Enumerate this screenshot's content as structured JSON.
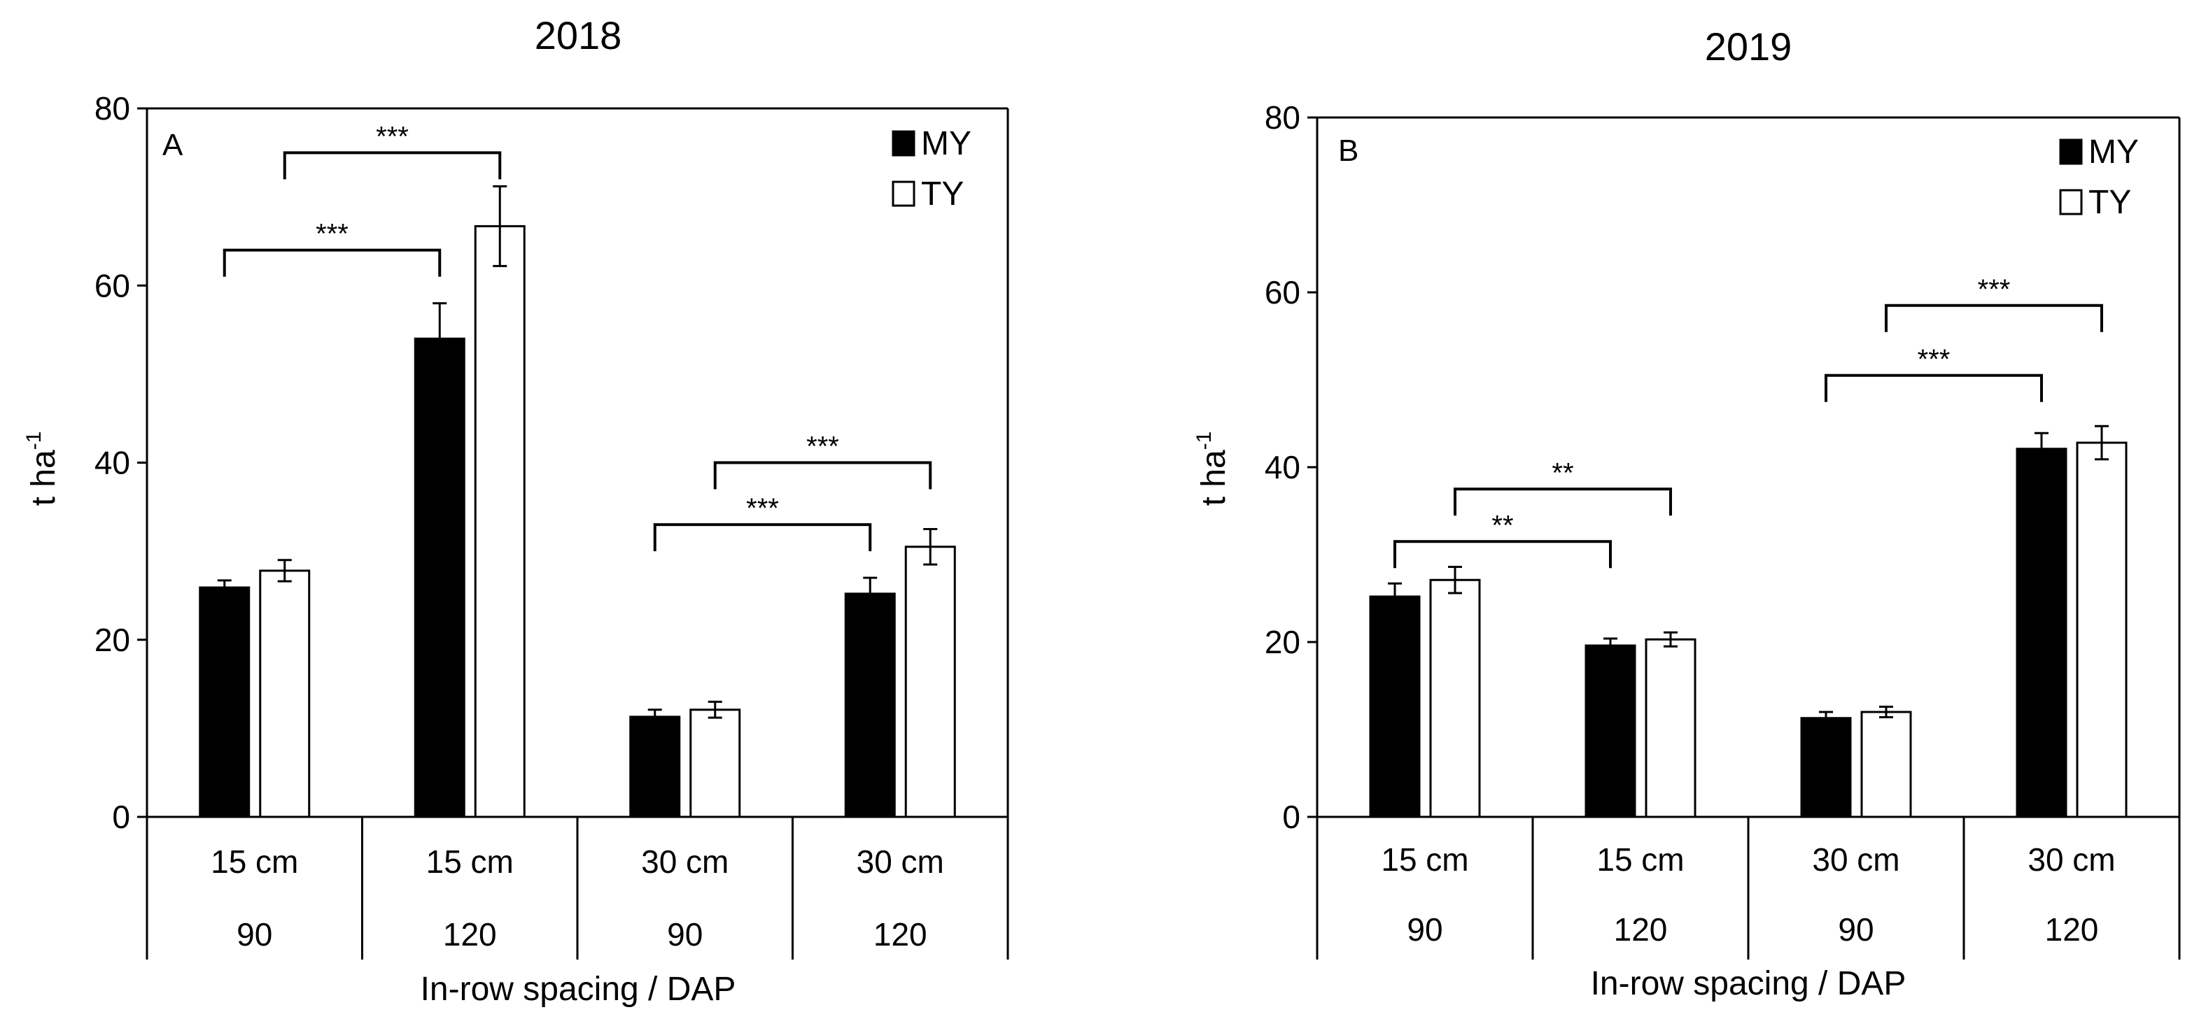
{
  "colors": {
    "my": "#000000",
    "ty": "#ffffff",
    "axis": "#000000"
  },
  "chart_data": [
    {
      "type": "bar",
      "title": "2018",
      "panel_label": "A",
      "ylabel": "t ha",
      "ylabel_sup": "-1",
      "xlabel": "In-row spacing / DAP",
      "ylim": [
        0,
        80
      ],
      "yticks": [
        "0",
        "20",
        "40",
        "60",
        "80"
      ],
      "categories_row1": [
        "15 cm",
        "15 cm",
        "30 cm",
        "30 cm"
      ],
      "categories_row2": [
        "90",
        "120",
        "90",
        "120"
      ],
      "legend": [
        "MY",
        "TY"
      ],
      "legend_position": "top-right",
      "series": [
        {
          "name": "MY",
          "values": [
            25.9,
            54.0,
            11.3,
            25.2
          ],
          "errors": [
            0.8,
            4.0,
            0.8,
            1.8
          ]
        },
        {
          "name": "TY",
          "values": [
            27.8,
            66.7,
            12.1,
            30.5
          ],
          "errors": [
            1.2,
            4.5,
            0.9,
            2.0
          ]
        }
      ],
      "significance": [
        {
          "from": [
            0,
            0
          ],
          "to": [
            1,
            0
          ],
          "label": "***",
          "y": 64
        },
        {
          "from": [
            0,
            1
          ],
          "to": [
            1,
            1
          ],
          "label": "***",
          "y": 75
        },
        {
          "from": [
            2,
            0
          ],
          "to": [
            3,
            0
          ],
          "label": "***",
          "y": 33
        },
        {
          "from": [
            2,
            1
          ],
          "to": [
            3,
            1
          ],
          "label": "***",
          "y": 40
        }
      ]
    },
    {
      "type": "bar",
      "title": "2019",
      "panel_label": "B",
      "ylabel": "t ha",
      "ylabel_sup": "-1",
      "xlabel": "In-row spacing / DAP",
      "ylim": [
        0,
        80
      ],
      "yticks": [
        "0",
        "20",
        "40",
        "60",
        "80"
      ],
      "categories_row1": [
        "15 cm",
        "15 cm",
        "30 cm",
        "30 cm"
      ],
      "categories_row2": [
        "90",
        "120",
        "90",
        "120"
      ],
      "legend": [
        "MY",
        "TY"
      ],
      "legend_position": "top-right",
      "series": [
        {
          "name": "MY",
          "values": [
            25.2,
            19.6,
            11.3,
            42.1
          ],
          "errors": [
            1.5,
            0.8,
            0.7,
            1.8
          ]
        },
        {
          "name": "TY",
          "values": [
            27.1,
            20.3,
            12.0,
            42.8
          ],
          "errors": [
            1.5,
            0.8,
            0.6,
            1.9
          ]
        }
      ],
      "significance": [
        {
          "from": [
            0,
            0
          ],
          "to": [
            1,
            0
          ],
          "label": "**",
          "y": 31.5
        },
        {
          "from": [
            0,
            1
          ],
          "to": [
            1,
            1
          ],
          "label": "**",
          "y": 37.5
        },
        {
          "from": [
            2,
            0
          ],
          "to": [
            3,
            0
          ],
          "label": "***",
          "y": 50.5
        },
        {
          "from": [
            2,
            1
          ],
          "to": [
            3,
            1
          ],
          "label": "***",
          "y": 58.5
        }
      ]
    }
  ]
}
